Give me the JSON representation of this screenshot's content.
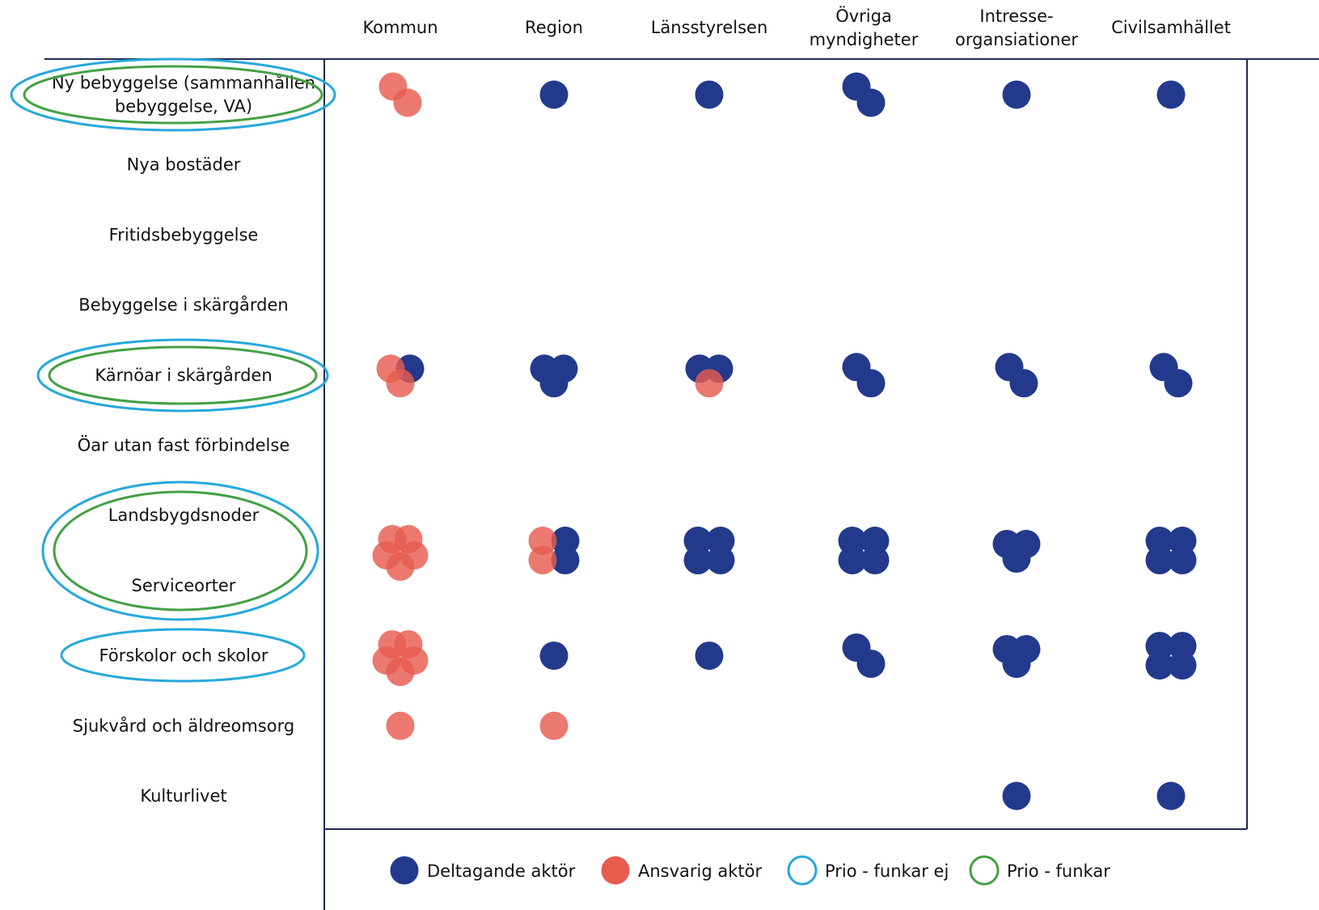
{
  "colors": {
    "participating": "#233a8c",
    "responsible": "#e65c4f",
    "prio_not_working": "#27a8dc",
    "prio_working": "#44a043",
    "line": "#1e2a50"
  },
  "columns": [
    {
      "lines": [
        "Kommun"
      ]
    },
    {
      "lines": [
        "Region"
      ]
    },
    {
      "lines": [
        "Länsstyrelsen"
      ]
    },
    {
      "lines": [
        "Övriga",
        "myndigheter"
      ]
    },
    {
      "lines": [
        "Intresse-",
        "organsiationer"
      ]
    },
    {
      "lines": [
        "Civilsamhället"
      ]
    }
  ],
  "rows": [
    {
      "lines": [
        "Ny bebyggelse (sammanhållen",
        "bebyggelse, VA)"
      ]
    },
    {
      "lines": [
        "Nya bostäder"
      ]
    },
    {
      "lines": [
        "Fritidsbebyggelse"
      ]
    },
    {
      "lines": [
        "Bebyggelse i skärgården"
      ]
    },
    {
      "lines": [
        "Kärnöar i skärgården"
      ]
    },
    {
      "lines": [
        "Öar utan fast förbindelse"
      ]
    },
    {
      "lines": [
        "Landsbygdsnoder"
      ]
    },
    {
      "lines": [
        "Serviceorter"
      ]
    },
    {
      "lines": [
        "Förskolor och skolor"
      ]
    },
    {
      "lines": [
        "Sjukvård och äldreomsorg"
      ]
    },
    {
      "lines": [
        "Kulturlivet"
      ]
    }
  ],
  "priority_marks": [
    {
      "rows": [
        0
      ],
      "prio_not_working": true,
      "prio_working": true
    },
    {
      "rows": [
        4
      ],
      "prio_not_working": true,
      "prio_working": true
    },
    {
      "rows": [
        6,
        7
      ],
      "prio_not_working": true,
      "prio_working": true
    },
    {
      "rows": [
        8
      ],
      "prio_not_working": true,
      "prio_working": false
    }
  ],
  "cells": [
    {
      "row": 0,
      "col": 0,
      "participating": 0,
      "responsible": 2
    },
    {
      "row": 0,
      "col": 1,
      "participating": 1,
      "responsible": 0
    },
    {
      "row": 0,
      "col": 2,
      "participating": 1,
      "responsible": 0
    },
    {
      "row": 0,
      "col": 3,
      "participating": 2,
      "responsible": 0
    },
    {
      "row": 0,
      "col": 4,
      "participating": 1,
      "responsible": 0
    },
    {
      "row": 0,
      "col": 5,
      "participating": 1,
      "responsible": 0
    },
    {
      "row": 4,
      "col": 0,
      "participating": 1,
      "responsible": 2
    },
    {
      "row": 4,
      "col": 1,
      "participating": 3,
      "responsible": 0
    },
    {
      "row": 4,
      "col": 2,
      "participating": 2,
      "responsible": 1
    },
    {
      "row": 4,
      "col": 3,
      "participating": 2,
      "responsible": 0
    },
    {
      "row": 4,
      "col": 4,
      "participating": 2,
      "responsible": 0
    },
    {
      "row": 4,
      "col": 5,
      "participating": 2,
      "responsible": 0
    },
    {
      "row": 6.5,
      "col": 0,
      "participating": 0,
      "responsible": 5
    },
    {
      "row": 6.5,
      "col": 1,
      "participating": 2,
      "responsible": 2
    },
    {
      "row": 6.5,
      "col": 2,
      "participating": 4,
      "responsible": 0
    },
    {
      "row": 6.5,
      "col": 3,
      "participating": 4,
      "responsible": 0
    },
    {
      "row": 6.5,
      "col": 4,
      "participating": 3,
      "responsible": 0
    },
    {
      "row": 6.5,
      "col": 5,
      "participating": 4,
      "responsible": 0
    },
    {
      "row": 8,
      "col": 0,
      "participating": 0,
      "responsible": 5
    },
    {
      "row": 8,
      "col": 1,
      "participating": 1,
      "responsible": 0
    },
    {
      "row": 8,
      "col": 2,
      "participating": 1,
      "responsible": 0
    },
    {
      "row": 8,
      "col": 3,
      "participating": 2,
      "responsible": 0
    },
    {
      "row": 8,
      "col": 4,
      "participating": 3,
      "responsible": 0
    },
    {
      "row": 8,
      "col": 5,
      "participating": 4,
      "responsible": 0
    },
    {
      "row": 9,
      "col": 0,
      "participating": 0,
      "responsible": 1
    },
    {
      "row": 9,
      "col": 1,
      "participating": 0,
      "responsible": 1
    },
    {
      "row": 10,
      "col": 4,
      "participating": 1,
      "responsible": 0
    },
    {
      "row": 10,
      "col": 5,
      "participating": 1,
      "responsible": 0
    }
  ],
  "legend": {
    "participating": "Deltagande aktör",
    "responsible": "Ansvarig aktör",
    "prio_not_working": "Prio - funkar ej",
    "prio_working": "Prio - funkar"
  }
}
